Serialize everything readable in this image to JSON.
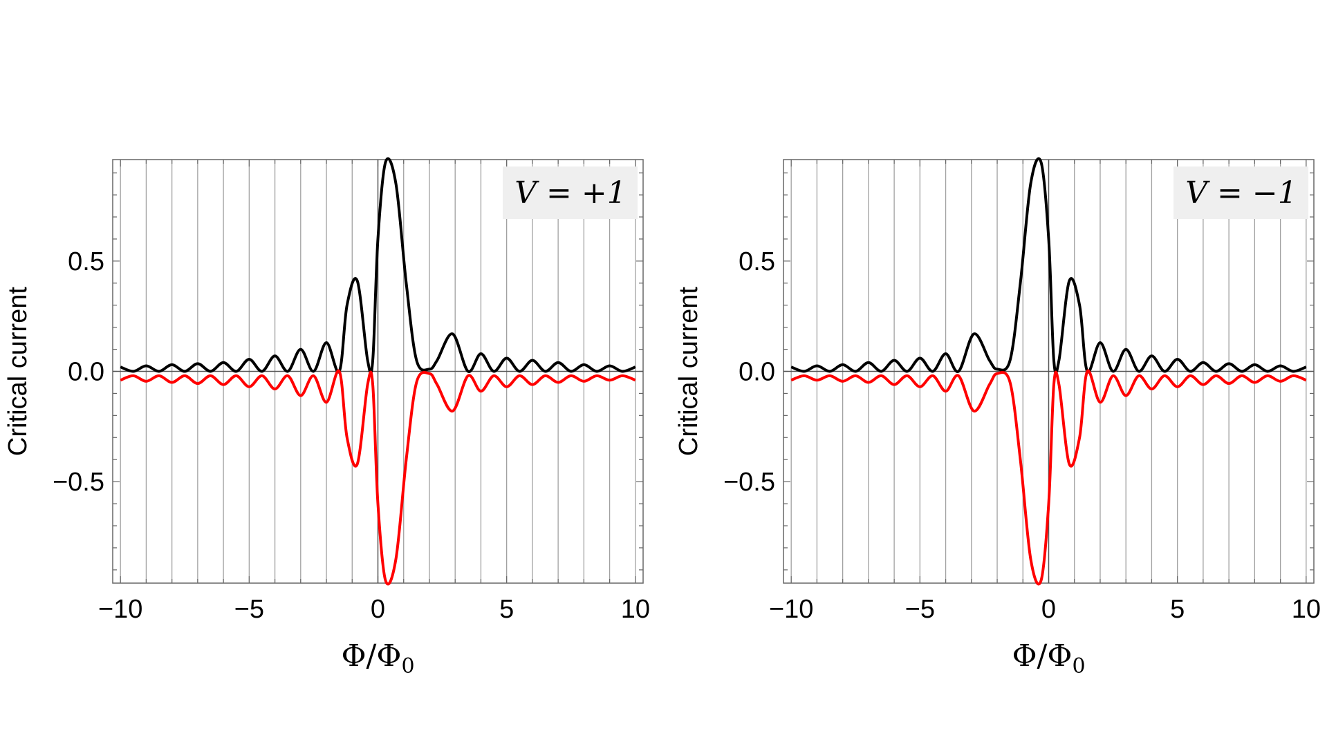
{
  "chart_data": [
    {
      "type": "line",
      "annotation": "V = +1",
      "xlabel_parts": {
        "main": "Φ/Φ",
        "sub": "0"
      },
      "ylabel": "Critical current",
      "xlim": [
        -10.3,
        10.3
      ],
      "ylim": [
        -0.96,
        0.96
      ],
      "xticks": [
        -10,
        -5,
        0,
        5,
        10
      ],
      "xtick_labels": [
        "−10",
        "−5",
        "0",
        "5",
        "10"
      ],
      "yticks": [
        -0.5,
        0,
        0.5
      ],
      "ytick_labels": [
        "−0.5",
        "0.0",
        "0.5"
      ],
      "grid": "vertical lines at every integer x",
      "series": [
        {
          "color": "#000000",
          "x": [
            -10,
            -9.5,
            -9,
            -8.5,
            -8,
            -7.5,
            -7,
            -6.5,
            -6,
            -5.5,
            -5,
            -4.5,
            -4,
            -3.5,
            -3,
            -2.5,
            -2,
            -1.5,
            -1.2,
            -0.8,
            -0.4,
            -0.2,
            0,
            0.3,
            0.7,
            1.1,
            1.5,
            2.0,
            2.3,
            2.9,
            3.5,
            4.0,
            4.5,
            5.0,
            5.5,
            6.0,
            6.5,
            7.0,
            7.5,
            8.0,
            8.5,
            9.0,
            9.5,
            10
          ],
          "y": [
            0.02,
            0.0,
            0.025,
            0.0,
            0.03,
            0.0,
            0.035,
            0.0,
            0.04,
            0.0,
            0.055,
            0.0,
            0.07,
            0.0,
            0.1,
            0.0,
            0.13,
            0.0,
            0.3,
            0.41,
            0.05,
            0.05,
            0.6,
            0.95,
            0.85,
            0.4,
            0.05,
            0.01,
            0.05,
            0.17,
            0.0,
            0.08,
            0.0,
            0.06,
            0.0,
            0.05,
            0.0,
            0.04,
            0.0,
            0.03,
            0.0,
            0.025,
            0.0,
            0.02
          ]
        },
        {
          "color": "#ff0000",
          "x": [
            -10,
            -9.5,
            -9,
            -8.5,
            -8,
            -7.5,
            -7,
            -6.5,
            -6,
            -5.5,
            -5,
            -4.5,
            -4,
            -3.5,
            -3,
            -2.5,
            -2,
            -1.5,
            -1.2,
            -0.8,
            -0.4,
            -0.2,
            0,
            0.3,
            0.7,
            1.1,
            1.5,
            2.0,
            2.3,
            2.9,
            3.5,
            4.0,
            4.5,
            5.0,
            5.5,
            6.0,
            6.5,
            7.0,
            7.5,
            8.0,
            8.5,
            9.0,
            9.5,
            10
          ],
          "y": [
            -0.04,
            -0.02,
            -0.045,
            -0.02,
            -0.05,
            -0.02,
            -0.055,
            -0.02,
            -0.06,
            -0.02,
            -0.07,
            -0.02,
            -0.08,
            -0.02,
            -0.11,
            -0.02,
            -0.14,
            0.0,
            -0.3,
            -0.42,
            -0.06,
            -0.06,
            -0.6,
            -0.95,
            -0.85,
            -0.4,
            -0.05,
            -0.01,
            -0.06,
            -0.18,
            -0.02,
            -0.09,
            -0.02,
            -0.07,
            -0.02,
            -0.06,
            -0.02,
            -0.05,
            -0.02,
            -0.045,
            -0.02,
            -0.04,
            -0.02,
            -0.04
          ]
        }
      ]
    },
    {
      "type": "line",
      "annotation": "V = −1",
      "xlabel_parts": {
        "main": "Φ/Φ",
        "sub": "0"
      },
      "ylabel": "Critical current",
      "xlim": [
        -10.3,
        10.3
      ],
      "ylim": [
        -0.96,
        0.96
      ],
      "xticks": [
        -10,
        -5,
        0,
        5,
        10
      ],
      "xtick_labels": [
        "−10",
        "−5",
        "0",
        "5",
        "10"
      ],
      "yticks": [
        -0.5,
        0,
        0.5
      ],
      "ytick_labels": [
        "−0.5",
        "0.0",
        "0.5"
      ],
      "grid": "vertical lines at every integer x",
      "series": [
        {
          "color": "#000000",
          "x": [
            -10,
            -9.5,
            -9,
            -8.5,
            -8,
            -7.5,
            -7,
            -6.5,
            -6,
            -5.5,
            -5,
            -4.5,
            -4,
            -3.5,
            -2.9,
            -2.3,
            -2.0,
            -1.5,
            -1.1,
            -0.7,
            -0.3,
            0,
            0.2,
            0.4,
            0.8,
            1.2,
            1.5,
            2,
            2.5,
            3,
            3.5,
            4,
            4.5,
            5,
            5.5,
            6,
            6.5,
            7,
            7.5,
            8,
            8.5,
            9,
            9.5,
            10
          ],
          "y": [
            0.02,
            0.0,
            0.025,
            0.0,
            0.03,
            0.0,
            0.04,
            0.0,
            0.05,
            0.0,
            0.06,
            0.0,
            0.08,
            0.0,
            0.17,
            0.05,
            0.01,
            0.05,
            0.4,
            0.85,
            0.95,
            0.6,
            0.05,
            0.05,
            0.41,
            0.3,
            0.0,
            0.13,
            0.0,
            0.1,
            0.0,
            0.07,
            0.0,
            0.055,
            0.0,
            0.04,
            0.0,
            0.035,
            0.0,
            0.03,
            0.0,
            0.025,
            0.0,
            0.02
          ]
        },
        {
          "color": "#ff0000",
          "x": [
            -10,
            -9.5,
            -9,
            -8.5,
            -8,
            -7.5,
            -7,
            -6.5,
            -6,
            -5.5,
            -5,
            -4.5,
            -4,
            -3.5,
            -2.9,
            -2.3,
            -2.0,
            -1.5,
            -1.1,
            -0.7,
            -0.3,
            0,
            0.2,
            0.4,
            0.8,
            1.2,
            1.5,
            2,
            2.5,
            3,
            3.5,
            4,
            4.5,
            5,
            5.5,
            6,
            6.5,
            7,
            7.5,
            8,
            8.5,
            9,
            9.5,
            10
          ],
          "y": [
            -0.04,
            -0.02,
            -0.04,
            -0.02,
            -0.045,
            -0.02,
            -0.05,
            -0.02,
            -0.06,
            -0.02,
            -0.07,
            -0.02,
            -0.09,
            -0.02,
            -0.18,
            -0.06,
            -0.01,
            -0.05,
            -0.4,
            -0.85,
            -0.95,
            -0.6,
            -0.06,
            -0.06,
            -0.42,
            -0.3,
            0.0,
            -0.14,
            -0.02,
            -0.11,
            -0.02,
            -0.08,
            -0.02,
            -0.07,
            -0.02,
            -0.06,
            -0.02,
            -0.055,
            -0.02,
            -0.05,
            -0.02,
            -0.045,
            -0.02,
            -0.04
          ]
        }
      ]
    }
  ]
}
